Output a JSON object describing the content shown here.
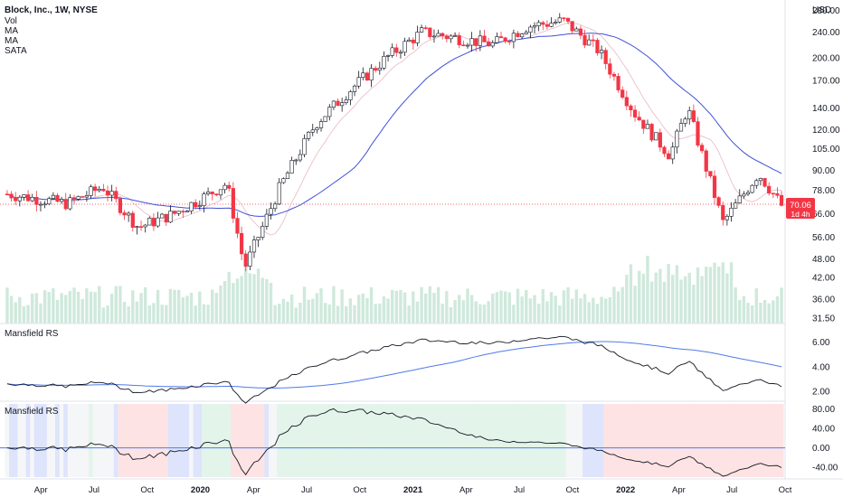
{
  "header": {
    "symbol_title": "Block, Inc., 1W, NYSE",
    "indicators": [
      "Vol",
      "MA",
      "MA",
      "SATA"
    ],
    "currency": "USD"
  },
  "price_badge": {
    "price": "70.06",
    "countdown": "1d 4h",
    "color": "#f23645"
  },
  "colors": {
    "up_candle": "#ffffff",
    "down_candle": "#f23645",
    "candle_outline": "#131722",
    "ma_slow": "#3f51d6",
    "ma_fast": "#e8b8c4",
    "volume": "#cfe9dc",
    "rs_line": "#131722",
    "rs_ma": "#4f7be8",
    "zone_green": "#e3f4ea",
    "zone_red": "#fde3e4",
    "zone_blue": "#dde4fb",
    "zone_white": "#f4f6f8"
  },
  "price_axis": [
    "280.00",
    "240.00",
    "200.00",
    "170.00",
    "140.00",
    "120.00",
    "105.00",
    "90.00",
    "78.00",
    "66.00",
    "56.00",
    "48.00",
    "42.00",
    "36.00",
    "31.50"
  ],
  "rs_panel": {
    "title": "Mansfield RS",
    "axis": [
      "6.00",
      "4.00",
      "2.00"
    ]
  },
  "rs_pct_panel": {
    "title": "Mansfield RS",
    "axis": [
      "80.00",
      "40.00",
      "0.00",
      "-40.00"
    ]
  },
  "time_axis": [
    {
      "label": "Apr",
      "bold": false
    },
    {
      "label": "Jul",
      "bold": false
    },
    {
      "label": "Oct",
      "bold": false
    },
    {
      "label": "2020",
      "bold": true
    },
    {
      "label": "Apr",
      "bold": false
    },
    {
      "label": "Jul",
      "bold": false
    },
    {
      "label": "Oct",
      "bold": false
    },
    {
      "label": "2021",
      "bold": true
    },
    {
      "label": "Apr",
      "bold": false
    },
    {
      "label": "Jul",
      "bold": false
    },
    {
      "label": "Oct",
      "bold": false
    },
    {
      "label": "2022",
      "bold": true
    },
    {
      "label": "Apr",
      "bold": false
    },
    {
      "label": "Jul",
      "bold": false
    },
    {
      "label": "Oct",
      "bold": false
    }
  ],
  "chart_data": {
    "type": "candlestick",
    "title": "Block, Inc., 1W, NYSE",
    "x_range": [
      "2019-02",
      "2022-09"
    ],
    "price_scale": "log",
    "ylim": [
      31.5,
      290
    ],
    "anchor_closes": [
      {
        "date": "2019-03",
        "close": 76
      },
      {
        "date": "2019-05",
        "close": 71
      },
      {
        "date": "2019-07",
        "close": 80
      },
      {
        "date": "2019-09",
        "close": 60
      },
      {
        "date": "2019-11",
        "close": 66
      },
      {
        "date": "2020-01",
        "close": 76
      },
      {
        "date": "2020-02",
        "close": 82
      },
      {
        "date": "2020-03",
        "close": 45
      },
      {
        "date": "2020-05",
        "close": 80
      },
      {
        "date": "2020-07",
        "close": 125
      },
      {
        "date": "2020-09",
        "close": 160
      },
      {
        "date": "2020-11",
        "close": 200
      },
      {
        "date": "2021-01",
        "close": 240
      },
      {
        "date": "2021-03",
        "close": 230
      },
      {
        "date": "2021-05",
        "close": 220
      },
      {
        "date": "2021-07",
        "close": 250
      },
      {
        "date": "2021-09",
        "close": 260
      },
      {
        "date": "2021-11",
        "close": 210
      },
      {
        "date": "2022-01",
        "close": 135
      },
      {
        "date": "2022-03",
        "close": 100
      },
      {
        "date": "2022-04",
        "close": 140
      },
      {
        "date": "2022-06",
        "close": 62
      },
      {
        "date": "2022-08",
        "close": 88
      },
      {
        "date": "2022-09",
        "close": 70.06
      }
    ],
    "last_price": 70.06,
    "rs_ylim": [
      1.5,
      7.2
    ],
    "rs_pct_ylim": [
      -60,
      90
    ]
  }
}
